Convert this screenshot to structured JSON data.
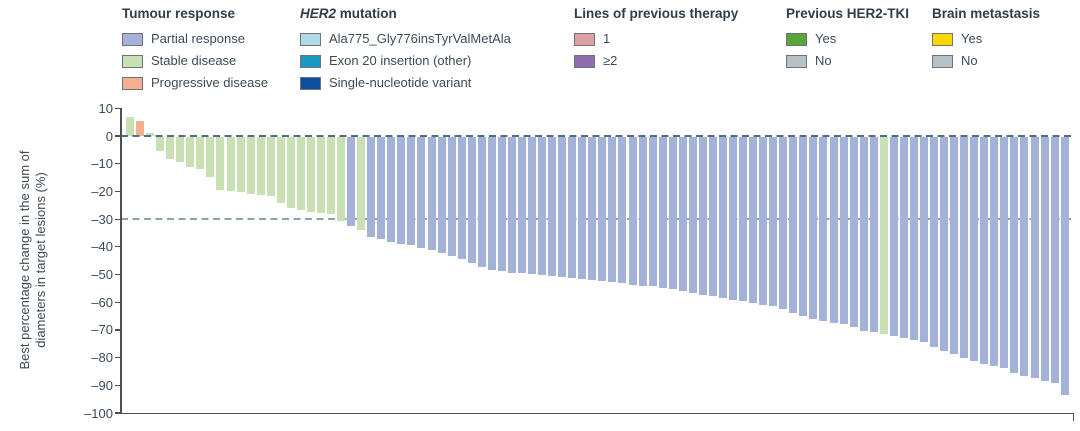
{
  "legend": {
    "groups": [
      {
        "title_em": "",
        "title": "Tumour response",
        "items": [
          {
            "label": "Partial response",
            "color": "#a4b2d9",
            "key": "pr"
          },
          {
            "label": "Stable disease",
            "color": "#c8e0b4",
            "key": "sd"
          },
          {
            "label": "Progressive disease",
            "color": "#f4ae92",
            "key": "pd"
          }
        ]
      },
      {
        "title_em": "HER2",
        "title": " mutation",
        "items": [
          {
            "label": "Ala775_Gly776insTyrValMetAla",
            "color": "#b0d9e7",
            "key": "ala775"
          },
          {
            "label": "Exon 20 insertion (other)",
            "color": "#1899c1",
            "key": "exon20"
          },
          {
            "label": "Single-nucleotide variant",
            "color": "#0d509c",
            "key": "snv"
          }
        ]
      },
      {
        "title_em": "",
        "title": "Lines of previous therapy",
        "items": [
          {
            "label": "1",
            "color": "#dfa0a5",
            "key": "lines-1"
          },
          {
            "label": "≥2",
            "color": "#8f6db1",
            "key": "lines-2plus"
          }
        ]
      },
      {
        "title_em": "",
        "title": "Previous HER2-TKI",
        "items": [
          {
            "label": "Yes",
            "color": "#58a538",
            "key": "tki-yes"
          },
          {
            "label": "No",
            "color": "#b7c1c8",
            "key": "tki-no"
          }
        ]
      },
      {
        "title_em": "",
        "title": "Brain metastasis",
        "items": [
          {
            "label": "Yes",
            "color": "#fdd800",
            "key": "brain-yes"
          },
          {
            "label": "No",
            "color": "#b7c1c8",
            "key": "brain-no"
          }
        ]
      }
    ]
  },
  "chart_data": {
    "type": "bar",
    "subtype": "waterfall",
    "title": "",
    "xlabel": "",
    "ylabel_lines": [
      "Best percentage change in the sum of",
      "diameters in target lesions (%)"
    ],
    "ylim": [
      -100,
      10
    ],
    "yticks": [
      10,
      0,
      -10,
      -20,
      -30,
      -40,
      -50,
      -60,
      -70,
      -80,
      -90,
      -100
    ],
    "ytick_labels": [
      "10",
      "0",
      "–10",
      "–20",
      "–30",
      "–40",
      "–50",
      "–60",
      "–70",
      "–80",
      "–90",
      "–100"
    ],
    "reference_lines": [
      0,
      -30
    ],
    "grid": false,
    "legend_position": "top",
    "response_colors": {
      "pr": "#a4b2d9",
      "sd": "#c8e0b4",
      "pd": "#f4ae92"
    },
    "bars": [
      {
        "value": 7,
        "response": "sd"
      },
      {
        "value": 5.5,
        "response": "pd"
      },
      {
        "value": 1,
        "response": "sd"
      },
      {
        "value": -5,
        "response": "sd"
      },
      {
        "value": -8,
        "response": "sd"
      },
      {
        "value": -9,
        "response": "sd"
      },
      {
        "value": -11,
        "response": "sd"
      },
      {
        "value": -11.5,
        "response": "sd"
      },
      {
        "value": -14.5,
        "response": "sd"
      },
      {
        "value": -19,
        "response": "sd"
      },
      {
        "value": -19.5,
        "response": "sd"
      },
      {
        "value": -20,
        "response": "sd"
      },
      {
        "value": -20.5,
        "response": "sd"
      },
      {
        "value": -21,
        "response": "sd"
      },
      {
        "value": -21.5,
        "response": "sd"
      },
      {
        "value": -24,
        "response": "sd"
      },
      {
        "value": -25.5,
        "response": "sd"
      },
      {
        "value": -26.5,
        "response": "sd"
      },
      {
        "value": -27,
        "response": "sd"
      },
      {
        "value": -27.5,
        "response": "sd"
      },
      {
        "value": -28,
        "response": "sd"
      },
      {
        "value": -30.5,
        "response": "sd"
      },
      {
        "value": -32,
        "response": "pr"
      },
      {
        "value": -33.5,
        "response": "sd"
      },
      {
        "value": -36,
        "response": "pr"
      },
      {
        "value": -37,
        "response": "pr"
      },
      {
        "value": -38,
        "response": "pr"
      },
      {
        "value": -38.5,
        "response": "pr"
      },
      {
        "value": -39,
        "response": "pr"
      },
      {
        "value": -40,
        "response": "pr"
      },
      {
        "value": -41,
        "response": "pr"
      },
      {
        "value": -42,
        "response": "pr"
      },
      {
        "value": -43,
        "response": "pr"
      },
      {
        "value": -44,
        "response": "pr"
      },
      {
        "value": -45.5,
        "response": "pr"
      },
      {
        "value": -47,
        "response": "pr"
      },
      {
        "value": -48,
        "response": "pr"
      },
      {
        "value": -48.5,
        "response": "pr"
      },
      {
        "value": -49,
        "response": "pr"
      },
      {
        "value": -49.3,
        "response": "pr"
      },
      {
        "value": -49.6,
        "response": "pr"
      },
      {
        "value": -50,
        "response": "pr"
      },
      {
        "value": -50.3,
        "response": "pr"
      },
      {
        "value": -50.6,
        "response": "pr"
      },
      {
        "value": -51,
        "response": "pr"
      },
      {
        "value": -51.3,
        "response": "pr"
      },
      {
        "value": -51.7,
        "response": "pr"
      },
      {
        "value": -52,
        "response": "pr"
      },
      {
        "value": -52.3,
        "response": "pr"
      },
      {
        "value": -52.8,
        "response": "pr"
      },
      {
        "value": -53.3,
        "response": "pr"
      },
      {
        "value": -53.7,
        "response": "pr"
      },
      {
        "value": -54,
        "response": "pr"
      },
      {
        "value": -54.5,
        "response": "pr"
      },
      {
        "value": -55,
        "response": "pr"
      },
      {
        "value": -55.8,
        "response": "pr"
      },
      {
        "value": -56.4,
        "response": "pr"
      },
      {
        "value": -57,
        "response": "pr"
      },
      {
        "value": -57.6,
        "response": "pr"
      },
      {
        "value": -58.2,
        "response": "pr"
      },
      {
        "value": -58.8,
        "response": "pr"
      },
      {
        "value": -59.4,
        "response": "pr"
      },
      {
        "value": -60,
        "response": "pr"
      },
      {
        "value": -60.6,
        "response": "pr"
      },
      {
        "value": -61.2,
        "response": "pr"
      },
      {
        "value": -62.3,
        "response": "pr"
      },
      {
        "value": -63.5,
        "response": "pr"
      },
      {
        "value": -64.7,
        "response": "pr"
      },
      {
        "value": -65.9,
        "response": "pr"
      },
      {
        "value": -66.5,
        "response": "pr"
      },
      {
        "value": -67.1,
        "response": "pr"
      },
      {
        "value": -67.7,
        "response": "pr"
      },
      {
        "value": -68.5,
        "response": "pr"
      },
      {
        "value": -70,
        "response": "pr"
      },
      {
        "value": -70.5,
        "response": "pr"
      },
      {
        "value": -71,
        "response": "sd"
      },
      {
        "value": -72,
        "response": "pr"
      },
      {
        "value": -72.6,
        "response": "pr"
      },
      {
        "value": -73.2,
        "response": "pr"
      },
      {
        "value": -74,
        "response": "pr"
      },
      {
        "value": -76,
        "response": "pr"
      },
      {
        "value": -77.3,
        "response": "pr"
      },
      {
        "value": -78.4,
        "response": "pr"
      },
      {
        "value": -79.8,
        "response": "pr"
      },
      {
        "value": -81,
        "response": "pr"
      },
      {
        "value": -82,
        "response": "pr"
      },
      {
        "value": -82.7,
        "response": "pr"
      },
      {
        "value": -83.4,
        "response": "pr"
      },
      {
        "value": -85.2,
        "response": "pr"
      },
      {
        "value": -86.3,
        "response": "pr"
      },
      {
        "value": -87,
        "response": "pr"
      },
      {
        "value": -88,
        "response": "pr"
      },
      {
        "value": -89,
        "response": "pr"
      },
      {
        "value": -93,
        "response": "pr"
      }
    ]
  }
}
